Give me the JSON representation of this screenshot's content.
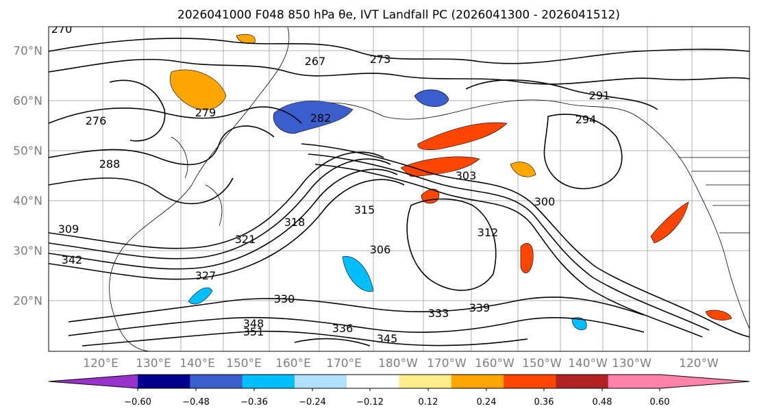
{
  "title": "2026041000 F048 850 hPa θe, IVT Landfall PC (2026041300 - 2026041512)",
  "map": {
    "lat_labels": [
      "70°N",
      "60°N",
      "50°N",
      "40°N",
      "30°N",
      "20°N"
    ],
    "lon_labels": [
      "120°E",
      "130°E",
      "140°E",
      "150°E",
      "160°E",
      "170°E",
      "180°W",
      "170°W",
      "160°W",
      "150°W",
      "140°W",
      "130°W",
      "120°W"
    ],
    "contour_labels": [
      "270",
      "267",
      "273",
      "279",
      "276",
      "288",
      "282",
      "291",
      "294",
      "303",
      "300",
      "315",
      "318",
      "321",
      "312",
      "306",
      "309",
      "342",
      "339",
      "336",
      "327",
      "330",
      "333",
      "348",
      "351",
      "345"
    ]
  },
  "colorbar": {
    "ticks": [
      "−0.60",
      "−0.48",
      "−0.36",
      "−0.24",
      "−0.12",
      "0.12",
      "0.24",
      "0.36",
      "0.48",
      "0.60"
    ],
    "colors": [
      "#9932cc",
      "#00008b",
      "#3a5fcd",
      "#00bfff",
      "#b0e2ff",
      "#ffffff",
      "#ffec8b",
      "#ffa500",
      "#ff4500",
      "#b22222",
      "#ff82ab",
      "#ff82ab"
    ]
  },
  "contour_color": "#000000",
  "gridline_color": "#999999"
}
